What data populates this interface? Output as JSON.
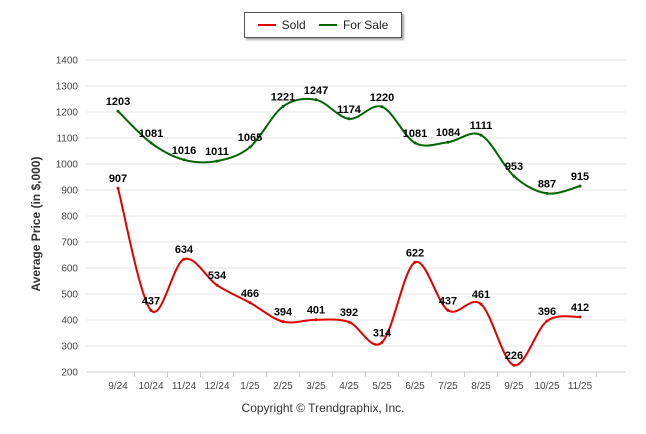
{
  "chart_data": {
    "type": "line",
    "title": "",
    "xlabel": "",
    "ylabel": "Average Price (in $,000)",
    "ylim": [
      200,
      1400
    ],
    "yticks": [
      200,
      300,
      400,
      500,
      600,
      700,
      800,
      900,
      1000,
      1100,
      1200,
      1300,
      1400
    ],
    "categories": [
      "9/24",
      "10/24",
      "11/24",
      "12/24",
      "1/25",
      "2/25",
      "3/25",
      "4/25",
      "5/25",
      "6/25",
      "7/25",
      "8/25",
      "9/25",
      "10/25",
      "11/25"
    ],
    "series": [
      {
        "name": "Sold",
        "color": "#e00000",
        "values": [
          907,
          437,
          634,
          534,
          466,
          394,
          401,
          392,
          314,
          622,
          437,
          461,
          226,
          396,
          412
        ]
      },
      {
        "name": "For Sale",
        "color": "#006400",
        "values": [
          1203,
          1081,
          1016,
          1011,
          1065,
          1221,
          1247,
          1174,
          1220,
          1081,
          1084,
          1111,
          953,
          887,
          915
        ]
      }
    ],
    "legend": "top-center",
    "grid": true
  },
  "copyright": "Copyright © Trendgraphix, Inc."
}
